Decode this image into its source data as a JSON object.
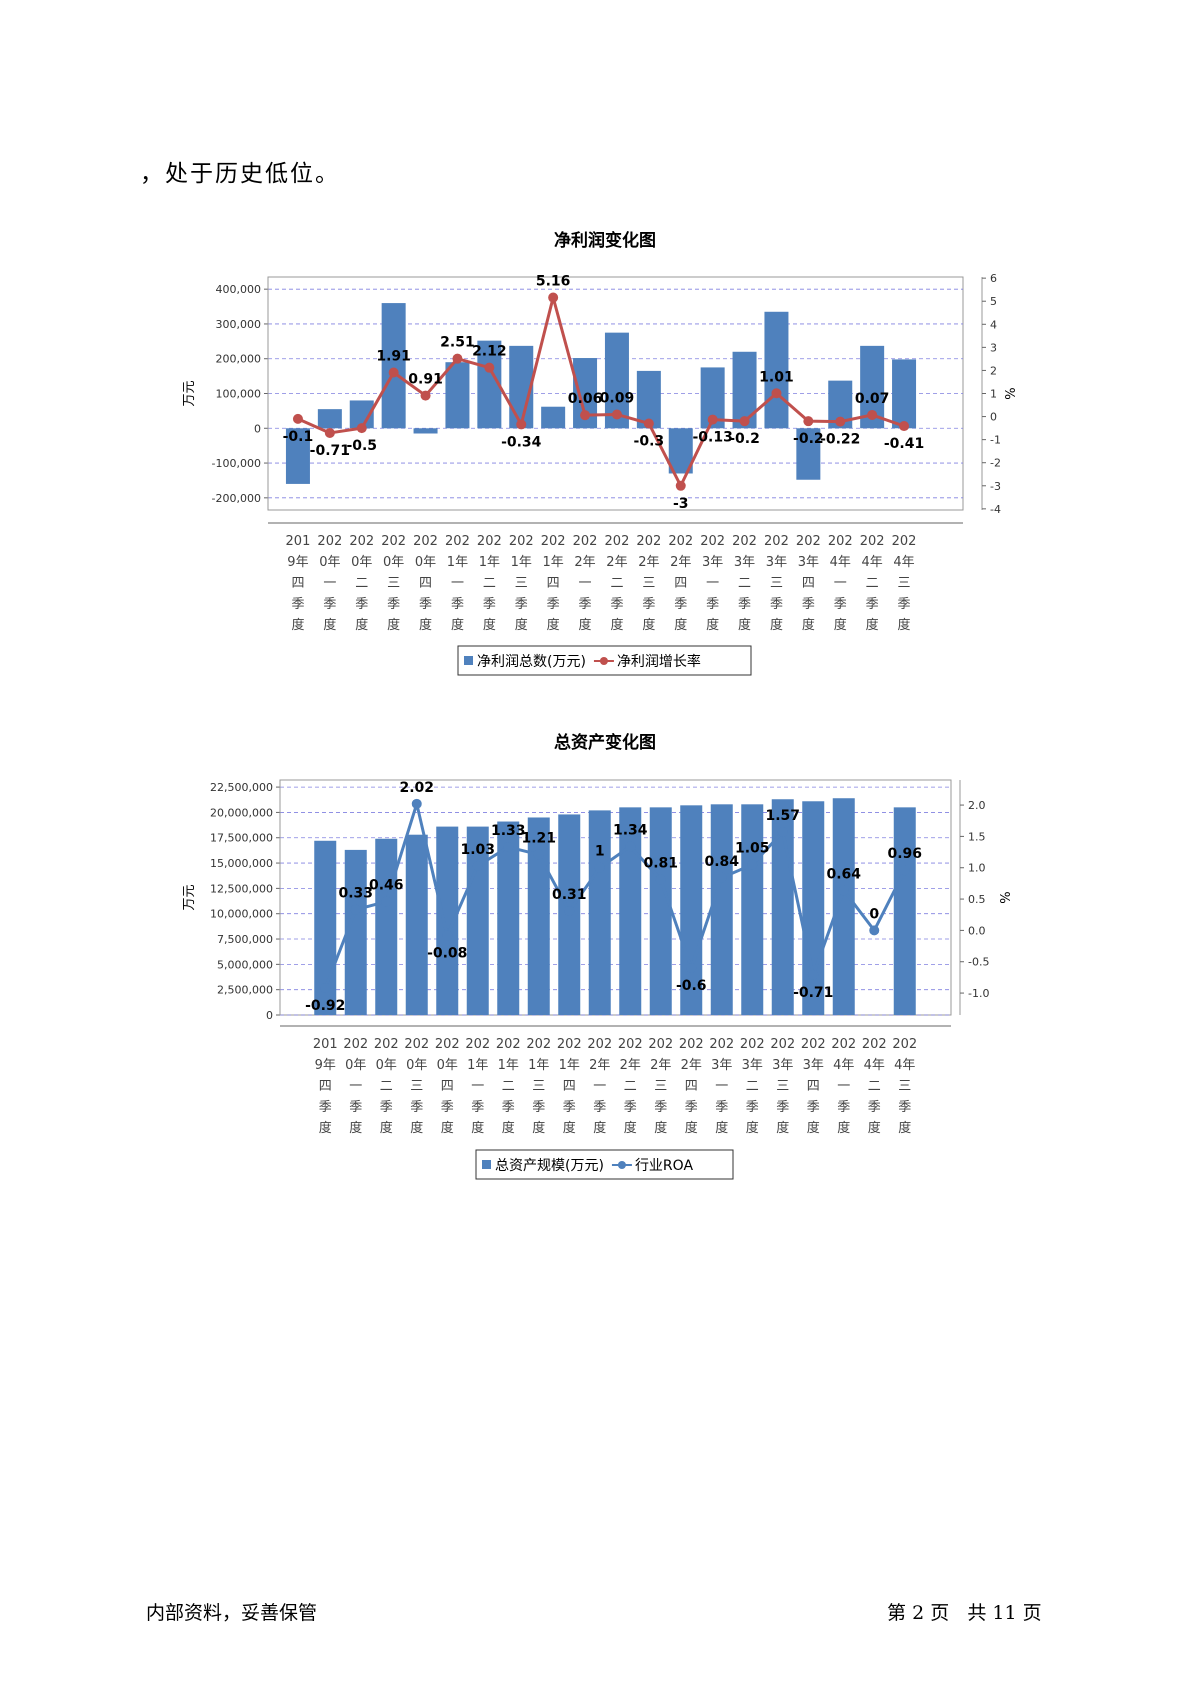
{
  "intro_text": "，处于历史低位。",
  "categories": [
    [
      "201",
      "9年",
      "四",
      "季",
      "度"
    ],
    [
      "202",
      "0年",
      "一",
      "季",
      "度"
    ],
    [
      "202",
      "0年",
      "二",
      "季",
      "度"
    ],
    [
      "202",
      "0年",
      "三",
      "季",
      "度"
    ],
    [
      "202",
      "0年",
      "四",
      "季",
      "度"
    ],
    [
      "202",
      "1年",
      "一",
      "季",
      "度"
    ],
    [
      "202",
      "1年",
      "二",
      "季",
      "度"
    ],
    [
      "202",
      "1年",
      "三",
      "季",
      "度"
    ],
    [
      "202",
      "1年",
      "四",
      "季",
      "度"
    ],
    [
      "202",
      "2年",
      "一",
      "季",
      "度"
    ],
    [
      "202",
      "2年",
      "二",
      "季",
      "度"
    ],
    [
      "202",
      "2年",
      "三",
      "季",
      "度"
    ],
    [
      "202",
      "2年",
      "四",
      "季",
      "度"
    ],
    [
      "202",
      "3年",
      "一",
      "季",
      "度"
    ],
    [
      "202",
      "3年",
      "二",
      "季",
      "度"
    ],
    [
      "202",
      "3年",
      "三",
      "季",
      "度"
    ],
    [
      "202",
      "3年",
      "四",
      "季",
      "度"
    ],
    [
      "202",
      "4年",
      "一",
      "季",
      "度"
    ],
    [
      "202",
      "4年",
      "二",
      "季",
      "度"
    ],
    [
      "202",
      "4年",
      "三",
      "季",
      "度"
    ]
  ],
  "chart_data": [
    {
      "type": "bar",
      "title": "净利润变化图",
      "ylabel": "万元",
      "y2label": "%",
      "ylim": [
        -235000,
        435000
      ],
      "y2lim": [
        -4.05,
        6.05
      ],
      "y_ticks": [
        "400,000",
        "300,000",
        "200,000",
        "100,000",
        "0",
        "-100,000",
        "-200,000"
      ],
      "y_tick_values": [
        400000,
        300000,
        200000,
        100000,
        0,
        -100000,
        -200000
      ],
      "y2_ticks": [
        "6",
        "5",
        "4",
        "3",
        "2",
        "1",
        "0",
        "-1",
        "-2",
        "-3",
        "-4"
      ],
      "y2_tick_values": [
        6,
        5,
        4,
        3,
        2,
        1,
        0,
        -1,
        -2,
        -3,
        -4
      ],
      "series": [
        {
          "name": "净利润总数(万元)",
          "kind": "bar",
          "color": "#4f81bd",
          "values": [
            -160000,
            55000,
            80000,
            360000,
            -15000,
            190000,
            252000,
            237000,
            62000,
            202000,
            275000,
            165000,
            -130000,
            175000,
            220000,
            335000,
            -148000,
            137000,
            237000,
            198000
          ]
        },
        {
          "name": "净利润增长率",
          "kind": "line",
          "color": "#c0504d",
          "values": [
            -0.1,
            -0.71,
            -0.5,
            1.91,
            0.91,
            2.51,
            2.12,
            -0.34,
            5.16,
            0.06,
            0.09,
            -0.3,
            -3,
            -0.13,
            -0.2,
            1.01,
            -0.2,
            -0.22,
            0.07,
            -0.41
          ],
          "labels": [
            "-0.1",
            "-0.71",
            "-0.5",
            "1.91",
            "0.91",
            "2.51",
            "2.12",
            "-0.34",
            "5.16",
            "0.06",
            "0.09",
            "-0.3",
            "-3",
            "-0.13",
            "-0.2",
            "1.01",
            "-0.2",
            "-0.22",
            "0.07",
            "-0.41"
          ]
        }
      ],
      "legend": {
        "position": "bottom",
        "items": [
          "净利润总数(万元)",
          "净利润增长率"
        ]
      }
    },
    {
      "type": "bar",
      "title": "总资产变化图",
      "ylabel": "万元",
      "y2label": "%",
      "ylim": [
        0,
        23200000
      ],
      "y2lim": [
        -1.35,
        2.4
      ],
      "y_ticks": [
        "22,500,000",
        "20,000,000",
        "17,500,000",
        "15,000,000",
        "12,500,000",
        "10,000,000",
        "7,500,000",
        "5,000,000",
        "2,500,000",
        "0"
      ],
      "y_tick_values": [
        22500000,
        20000000,
        17500000,
        15000000,
        12500000,
        10000000,
        7500000,
        5000000,
        2500000,
        0
      ],
      "y2_ticks": [
        "2.0",
        "1.5",
        "1.0",
        "0.5",
        "0.0",
        "-0.5",
        "-1.0"
      ],
      "y2_tick_values": [
        2.0,
        1.5,
        1.0,
        0.5,
        0.0,
        -0.5,
        -1.0
      ],
      "series": [
        {
          "name": "总资产规模(万元)",
          "kind": "bar",
          "color": "#4f81bd",
          "values": [
            17200000,
            16300000,
            17400000,
            17800000,
            18600000,
            18600000,
            19100000,
            19500000,
            19800000,
            20200000,
            20500000,
            20500000,
            20700000,
            20800000,
            20800000,
            21300000,
            21100000,
            21400000,
            0,
            20500000
          ]
        },
        {
          "name": "行业ROA",
          "kind": "line",
          "color": "#4f81bd",
          "values": [
            -0.92,
            0.33,
            0.46,
            2.02,
            -0.08,
            1.03,
            1.33,
            1.21,
            0.31,
            1,
            1.34,
            0.81,
            -0.6,
            0.84,
            1.05,
            1.57,
            -0.71,
            0.64,
            0,
            0.96
          ],
          "labels": [
            "-0.92",
            "0.33",
            "0.46",
            "2.02",
            "-0.08",
            "1.03",
            "1.33",
            "1.21",
            "0.31",
            "1",
            "1.34",
            "0.81",
            "-0.6",
            "0.84",
            "1.05",
            "1.57",
            "-0.71",
            "0.64",
            "0",
            "0.96"
          ]
        }
      ],
      "legend": {
        "position": "bottom",
        "items": [
          "总资产规模(万元)",
          "行业ROA"
        ]
      }
    }
  ],
  "footer": {
    "left": "内部资料，妥善保管",
    "page_label_a": "第",
    "page_number": "2",
    "page_label_b": "页",
    "total_label_a": "共",
    "total_pages": "11",
    "total_label_b": "页"
  }
}
